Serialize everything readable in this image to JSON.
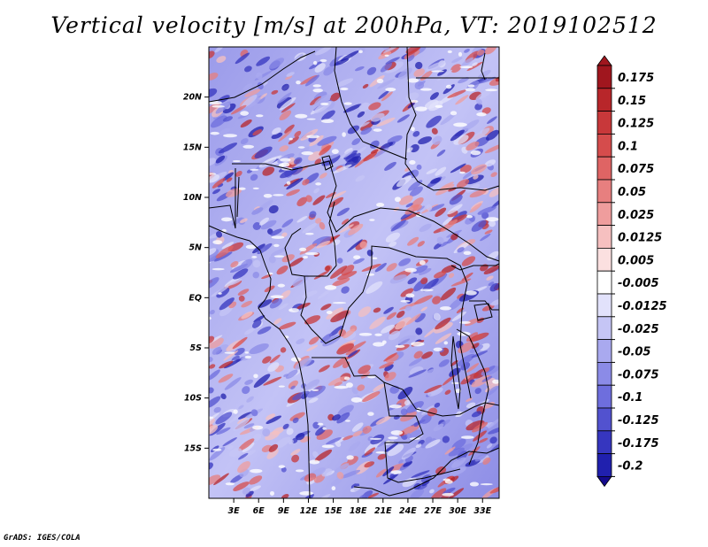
{
  "title": "Vertical velocity [m/s] at 200hPa, VT: 2019102512",
  "credit": "GrADS: IGES/COLA",
  "map": {
    "lon_labels": [
      "3E",
      "6E",
      "9E",
      "12E",
      "15E",
      "18E",
      "21E",
      "24E",
      "27E",
      "30E",
      "33E"
    ],
    "lon_values": [
      3,
      6,
      9,
      12,
      15,
      18,
      21,
      24,
      27,
      30,
      33
    ],
    "lon_range": [
      0,
      35
    ],
    "lat_labels": [
      "20N",
      "15N",
      "10N",
      "5N",
      "EQ",
      "5S",
      "10S",
      "15S"
    ],
    "lat_values": [
      20,
      15,
      10,
      5,
      0,
      -5,
      -10,
      -15
    ],
    "lat_range": [
      -20,
      25
    ]
  },
  "colorbar": {
    "labels": [
      "0.175",
      "0.15",
      "0.125",
      "0.1",
      "0.075",
      "0.05",
      "0.025",
      "0.0125",
      "0.005",
      "-0.005",
      "-0.0125",
      "-0.025",
      "-0.05",
      "-0.075",
      "-0.1",
      "-0.125",
      "-0.175",
      "-0.2"
    ],
    "colors": [
      "#a0161e",
      "#b8262a",
      "#c8383a",
      "#d54c4c",
      "#df6464",
      "#e77f7f",
      "#ef9d9d",
      "#f6c0c0",
      "#fbe0e0",
      "#ffffff",
      "#e2e2fb",
      "#c5c5f5",
      "#a9a9ef",
      "#8b8be7",
      "#6e6edd",
      "#5252cf",
      "#3636bf",
      "#2020ae",
      "#140a8c"
    ]
  }
}
